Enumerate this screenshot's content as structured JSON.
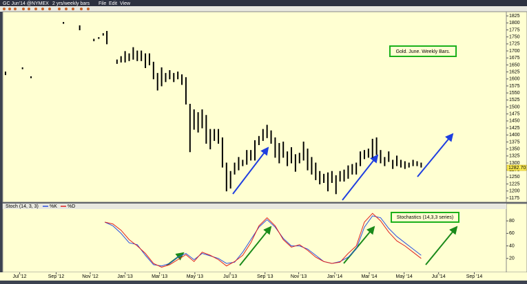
{
  "toolbar": {
    "symbol": "GC Jun'14 @NYMEX",
    "period": "2 yrs/weekly bars",
    "menu": [
      "File",
      "Edit",
      "View"
    ]
  },
  "chart_data": [
    {
      "type": "ohlc",
      "title": "Gold. June. Weekly Bars.",
      "color": "#000000",
      "x": [
        0.5,
        4.7,
        6.8,
        14.8,
        18.8,
        22.3,
        23.5,
        24.6,
        25.5,
        28,
        29,
        30,
        31,
        32,
        33,
        34,
        35,
        36,
        37,
        38,
        39,
        40,
        41,
        42,
        43,
        44,
        45,
        46,
        47,
        48,
        49,
        50,
        51,
        52,
        53,
        54,
        55,
        56,
        57,
        58,
        59,
        60,
        61,
        62,
        63,
        64,
        65,
        66,
        67,
        68,
        69,
        70,
        71,
        72,
        73,
        74,
        75,
        76,
        77,
        78,
        79,
        80,
        81,
        82,
        83,
        84,
        85,
        86,
        87,
        88,
        89,
        90,
        91,
        92,
        93,
        94,
        95,
        96,
        97,
        98,
        99,
        100,
        101,
        102,
        103
      ],
      "high": [
        1625,
        1640,
        1608,
        1802,
        1790,
        1742,
        1748,
        1762,
        1770,
        1668,
        1680,
        1698,
        1690,
        1712,
        1700,
        1700,
        1690,
        1690,
        1660,
        1620,
        1640,
        1620,
        1630,
        1620,
        1625,
        1615,
        1605,
        1510,
        1490,
        1480,
        1490,
        1470,
        1420,
        1420,
        1420,
        1390,
        1300,
        1270,
        1300,
        1320,
        1310,
        1345,
        1345,
        1380,
        1395,
        1420,
        1435,
        1415,
        1390,
        1370,
        1375,
        1340,
        1355,
        1330,
        1335,
        1375,
        1350,
        1320,
        1300,
        1270,
        1260,
        1265,
        1270,
        1255,
        1270,
        1275,
        1290,
        1295,
        1300,
        1340,
        1345,
        1350,
        1385,
        1390,
        1345,
        1320,
        1340,
        1310,
        1325,
        1310,
        1305,
        1300,
        1310,
        1305,
        1300
      ],
      "low": [
        1615,
        1636,
        1604,
        1798,
        1775,
        1736,
        1744,
        1756,
        1725,
        1655,
        1660,
        1660,
        1665,
        1670,
        1665,
        1665,
        1640,
        1650,
        1600,
        1560,
        1575,
        1590,
        1600,
        1590,
        1600,
        1580,
        1510,
        1340,
        1420,
        1410,
        1425,
        1370,
        1350,
        1380,
        1370,
        1285,
        1200,
        1210,
        1260,
        1275,
        1290,
        1295,
        1310,
        1310,
        1365,
        1380,
        1390,
        1370,
        1320,
        1300,
        1320,
        1290,
        1300,
        1270,
        1300,
        1310,
        1275,
        1260,
        1240,
        1225,
        1230,
        1200,
        1230,
        1190,
        1235,
        1235,
        1245,
        1260,
        1260,
        1290,
        1315,
        1320,
        1320,
        1330,
        1300,
        1290,
        1305,
        1280,
        1290,
        1285,
        1280,
        1285,
        1290,
        1290,
        1285
      ],
      "last_price": {
        "value": 1282.7,
        "label": "1282.70"
      },
      "xlim": [
        0,
        124
      ],
      "ylim": [
        1165,
        1840
      ],
      "yticks": [
        1175,
        1200,
        1225,
        1250,
        1275,
        1300,
        1325,
        1350,
        1375,
        1400,
        1425,
        1450,
        1475,
        1500,
        1525,
        1550,
        1575,
        1600,
        1625,
        1650,
        1675,
        1700,
        1725,
        1750,
        1775,
        1800,
        1825
      ]
    },
    {
      "type": "line",
      "title": "Stochastics (14,3,3 series)",
      "label": "Stoch (14, 3, 3)",
      "x": [
        25,
        27,
        29,
        31,
        33,
        35,
        37,
        39,
        41,
        43,
        45,
        47,
        49,
        51,
        53,
        55,
        57,
        59,
        61,
        63,
        65,
        67,
        69,
        71,
        73,
        75,
        77,
        79,
        81,
        83,
        85,
        87,
        89,
        91,
        93,
        95,
        97,
        99,
        101,
        103
      ],
      "series": [
        {
          "name": "%K",
          "color": "#2a4fe0",
          "values": [
            78,
            72,
            60,
            45,
            42,
            25,
            10,
            8,
            12,
            22,
            28,
            18,
            28,
            24,
            20,
            12,
            14,
            30,
            50,
            70,
            82,
            70,
            52,
            40,
            40,
            35,
            25,
            15,
            12,
            15,
            22,
            35,
            70,
            88,
            85,
            68,
            55,
            45,
            35,
            25
          ]
        },
        {
          "name": "%D",
          "color": "#e02020",
          "values": [
            78,
            75,
            65,
            50,
            40,
            28,
            12,
            6,
            10,
            18,
            26,
            15,
            30,
            25,
            18,
            8,
            15,
            25,
            45,
            72,
            85,
            72,
            50,
            38,
            42,
            33,
            22,
            15,
            12,
            14,
            28,
            40,
            78,
            92,
            80,
            62,
            48,
            40,
            30,
            20
          ]
        }
      ],
      "xlim": [
        0,
        124
      ],
      "ylim": [
        0,
        100
      ],
      "yticks": [
        20,
        40,
        60,
        80
      ],
      "xticks": [
        {
          "value": 4,
          "label": "Jul '12"
        },
        {
          "value": 13,
          "label": "Sep '12"
        },
        {
          "value": 21.4,
          "label": "Nov '12"
        },
        {
          "value": 30,
          "label": "Jan '13"
        },
        {
          "value": 38.5,
          "label": "Mar '13"
        },
        {
          "value": 47.2,
          "label": "May '13"
        },
        {
          "value": 55.9,
          "label": "Jul '13"
        },
        {
          "value": 64.5,
          "label": "Sep '13"
        },
        {
          "value": 72.8,
          "label": "Nov '13"
        },
        {
          "value": 81.7,
          "label": "Jan '14"
        },
        {
          "value": 90.2,
          "label": "Mar '14"
        },
        {
          "value": 98.8,
          "label": "May '14"
        },
        {
          "value": 107.3,
          "label": "Jul '14"
        },
        {
          "value": 116.1,
          "label": "Sep '14"
        }
      ]
    }
  ]
}
